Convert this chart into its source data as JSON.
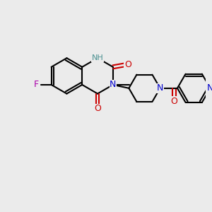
{
  "background_color": "#ebebeb",
  "bond_color": "#000000",
  "bond_width": 1.5,
  "atom_colors": {
    "N": "#0000cc",
    "O": "#cc0000",
    "F": "#aa00aa",
    "NH": "#4a9090",
    "Npip": "#0000cc",
    "Npyr": "#0000cc"
  },
  "font_size": 9,
  "font_size_small": 8
}
